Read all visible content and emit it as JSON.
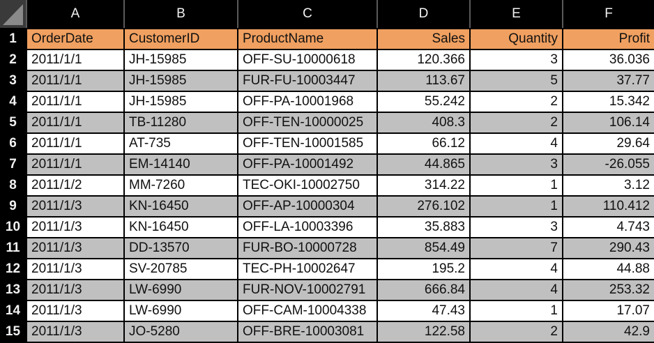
{
  "columns": [
    "A",
    "B",
    "C",
    "D",
    "E",
    "F"
  ],
  "header": [
    "OrderDate",
    "CustomerID",
    "ProductName",
    "Sales",
    "Quantity",
    "Profit"
  ],
  "rows": [
    [
      "2011/1/1",
      "JH-15985",
      "OFF-SU-10000618",
      "120.366",
      "3",
      "36.036"
    ],
    [
      "2011/1/1",
      "JH-15985",
      "FUR-FU-10003447",
      "113.67",
      "5",
      "37.77"
    ],
    [
      "2011/1/1",
      "JH-15985",
      "OFF-PA-10001968",
      "55.242",
      "2",
      "15.342"
    ],
    [
      "2011/1/1",
      "TB-11280",
      "OFF-TEN-10000025",
      "408.3",
      "2",
      "106.14"
    ],
    [
      "2011/1/1",
      "AT-735",
      "OFF-TEN-10001585",
      "66.12",
      "4",
      "29.64"
    ],
    [
      "2011/1/1",
      "EM-14140",
      "OFF-PA-10001492",
      "44.865",
      "3",
      "-26.055"
    ],
    [
      "2011/1/2",
      "MM-7260",
      "TEC-OKI-10002750",
      "314.22",
      "1",
      "3.12"
    ],
    [
      "2011/1/3",
      "KN-16450",
      "OFF-AP-10000304",
      "276.102",
      "1",
      "110.412"
    ],
    [
      "2011/1/3",
      "KN-16450",
      "OFF-LA-10003396",
      "35.883",
      "3",
      "4.743"
    ],
    [
      "2011/1/3",
      "DD-13570",
      "FUR-BO-10000728",
      "854.49",
      "7",
      "290.43"
    ],
    [
      "2011/1/3",
      "SV-20785",
      "TEC-PH-10002647",
      "195.2",
      "4",
      "44.88"
    ],
    [
      "2011/1/3",
      "LW-6990",
      "FUR-NOV-10002791",
      "666.84",
      "4",
      "253.32"
    ],
    [
      "2011/1/3",
      "LW-6990",
      "OFF-CAM-10004338",
      "47.43",
      "1",
      "17.07"
    ],
    [
      "2011/1/3",
      "JO-5280",
      "OFF-BRE-10003081",
      "122.58",
      "2",
      "42.9"
    ]
  ],
  "row_numbers": [
    "1",
    "2",
    "3",
    "4",
    "5",
    "6",
    "7",
    "8",
    "9",
    "10",
    "11",
    "12",
    "13",
    "14",
    "15"
  ],
  "colors": {
    "header_fill": "#f0a060",
    "band_white": "#ffffff",
    "band_gray": "#c0c0c0",
    "grid_line": "#000000",
    "frame_bg": "#000000",
    "frame_text": "#f2f2f2"
  },
  "icons": {
    "corner": "select-all-triangle-icon"
  }
}
